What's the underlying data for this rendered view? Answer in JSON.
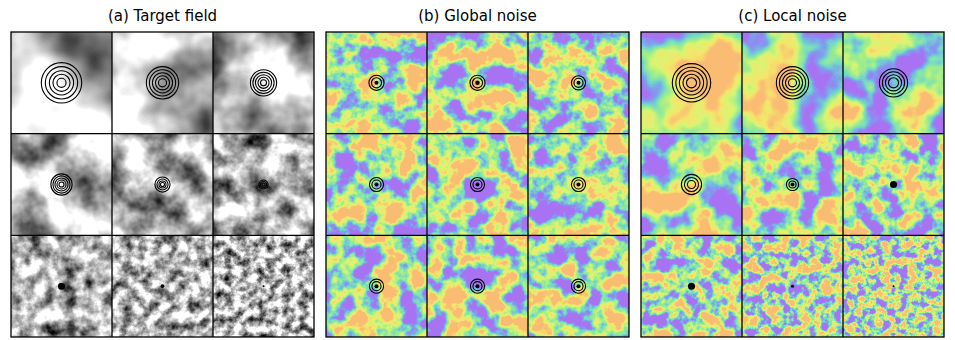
{
  "chart_data": [
    {
      "type": "image_grid",
      "title": "(a) Target field",
      "color": "gray",
      "xlim": [
        0,
        1
      ],
      "ylim": [
        0,
        1
      ],
      "tick_labels": false,
      "cells": [
        {
          "contour_radii": [
            0.2,
            0.16,
            0.12,
            0.085,
            0.045
          ]
        },
        {
          "contour_radii": [
            0.16,
            0.13,
            0.1,
            0.07,
            0.04
          ]
        },
        {
          "contour_radii": [
            0.13,
            0.105,
            0.08,
            0.055,
            0.03
          ]
        },
        {
          "contour_radii": [
            0.105,
            0.085,
            0.065,
            0.045,
            0.025
          ]
        },
        {
          "contour_radii": [
            0.075,
            0.055,
            0.035,
            0.02
          ]
        },
        {
          "contour_radii": [
            0.045,
            0.03,
            0.015
          ]
        },
        {
          "dot_radius": 0.035
        },
        {
          "dot_radius": 0.018
        },
        {
          "dot_radius": 0.01
        }
      ]
    },
    {
      "type": "image_grid",
      "title": "(b) Global noise",
      "color": "colormap",
      "xlim": [
        0,
        1
      ],
      "ylim": [
        0,
        1
      ],
      "tick_labels": false,
      "cells": [
        {
          "contour_radii": [
            0.075,
            0.05
          ],
          "dot_radius": 0.02
        },
        {
          "contour_radii": [
            0.075,
            0.05
          ],
          "dot_radius": 0.022
        },
        {
          "contour_radii": [
            0.07,
            0.045
          ],
          "dot_radius": 0.02
        },
        {
          "contour_radii": [
            0.07,
            0.045
          ],
          "dot_radius": 0.02
        },
        {
          "contour_radii": [
            0.07,
            0.045
          ],
          "dot_radius": 0.02
        },
        {
          "contour_radii": [
            0.07,
            0.045
          ],
          "dot_radius": 0.02
        },
        {
          "contour_radii": [
            0.07,
            0.045
          ],
          "dot_radius": 0.02
        },
        {
          "contour_radii": [
            0.07,
            0.045
          ],
          "dot_radius": 0.02
        },
        {
          "contour_radii": [
            0.07,
            0.045
          ],
          "dot_radius": 0.02
        }
      ]
    },
    {
      "type": "image_grid",
      "title": "(c) Local noise",
      "color": "colormap",
      "xlim": [
        0,
        1
      ],
      "ylim": [
        0,
        1
      ],
      "tick_labels": false,
      "cells": [
        {
          "contour_radii": [
            0.19,
            0.155,
            0.12,
            0.085,
            0.05
          ]
        },
        {
          "contour_radii": [
            0.16,
            0.13,
            0.1,
            0.07,
            0.04
          ]
        },
        {
          "contour_radii": [
            0.14,
            0.11,
            0.08,
            0.05
          ]
        },
        {
          "contour_radii": [
            0.1,
            0.07,
            0.04
          ]
        },
        {
          "contour_radii": [
            0.06,
            0.035
          ],
          "dot_radius": 0.02
        },
        {
          "dot_radius": 0.035
        },
        {
          "dot_radius": 0.035
        },
        {
          "dot_radius": 0.015
        },
        {
          "dot_radius": 0.01
        }
      ]
    }
  ]
}
